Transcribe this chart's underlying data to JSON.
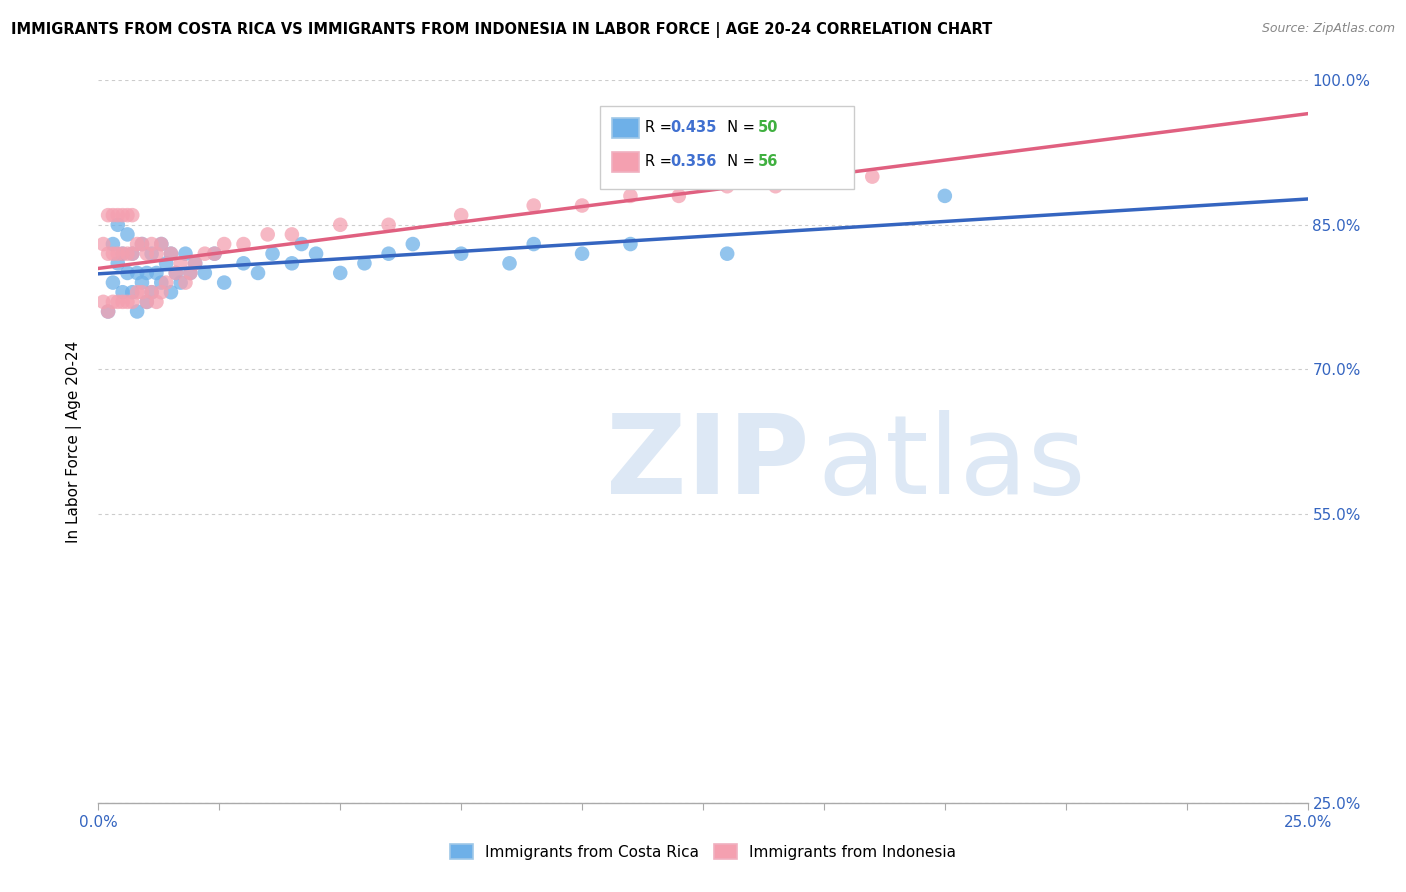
{
  "title": "IMMIGRANTS FROM COSTA RICA VS IMMIGRANTS FROM INDONESIA IN LABOR FORCE | AGE 20-24 CORRELATION CHART",
  "source": "Source: ZipAtlas.com",
  "ylabel": "In Labor Force | Age 20-24",
  "xlim": [
    0.0,
    0.25
  ],
  "ylim": [
    0.25,
    1.0
  ],
  "xticks": [
    0.0,
    0.025,
    0.05,
    0.075,
    0.1,
    0.125,
    0.15,
    0.175,
    0.2,
    0.225,
    0.25
  ],
  "yticks": [
    0.25,
    0.55,
    0.7,
    0.85,
    1.0
  ],
  "ytick_labels": [
    "25.0%",
    "55.0%",
    "70.0%",
    "85.0%",
    "100.0%"
  ],
  "xtick_labels": [
    "0.0%",
    "",
    "",
    "",
    "",
    "",
    "",
    "",
    "",
    "",
    "25.0%"
  ],
  "blue_R": 0.435,
  "blue_N": 50,
  "pink_R": 0.356,
  "pink_N": 56,
  "blue_color": "#6eb0e8",
  "pink_color": "#f4a0b0",
  "blue_line_color": "#3565c0",
  "pink_line_color": "#e06080",
  "legend_R_color": "#4070d0",
  "legend_N_color": "#40b040",
  "watermark_color": "#dde8f5",
  "background_color": "#ffffff",
  "grid_color": "#cccccc",
  "blue_x": [
    0.002,
    0.003,
    0.003,
    0.004,
    0.004,
    0.005,
    0.005,
    0.006,
    0.006,
    0.007,
    0.007,
    0.008,
    0.008,
    0.009,
    0.009,
    0.01,
    0.01,
    0.011,
    0.011,
    0.012,
    0.013,
    0.013,
    0.014,
    0.015,
    0.015,
    0.016,
    0.017,
    0.018,
    0.019,
    0.02,
    0.022,
    0.024,
    0.026,
    0.03,
    0.033,
    0.036,
    0.04,
    0.042,
    0.045,
    0.05,
    0.055,
    0.06,
    0.065,
    0.075,
    0.085,
    0.09,
    0.1,
    0.11,
    0.13,
    0.175
  ],
  "blue_y": [
    0.76,
    0.79,
    0.83,
    0.81,
    0.85,
    0.78,
    0.82,
    0.8,
    0.84,
    0.78,
    0.82,
    0.76,
    0.8,
    0.79,
    0.83,
    0.77,
    0.8,
    0.78,
    0.82,
    0.8,
    0.79,
    0.83,
    0.81,
    0.78,
    0.82,
    0.8,
    0.79,
    0.82,
    0.8,
    0.81,
    0.8,
    0.82,
    0.79,
    0.81,
    0.8,
    0.82,
    0.81,
    0.83,
    0.82,
    0.8,
    0.81,
    0.82,
    0.83,
    0.82,
    0.81,
    0.83,
    0.82,
    0.83,
    0.82,
    0.88
  ],
  "pink_x": [
    0.001,
    0.001,
    0.002,
    0.002,
    0.002,
    0.003,
    0.003,
    0.003,
    0.004,
    0.004,
    0.004,
    0.005,
    0.005,
    0.005,
    0.006,
    0.006,
    0.006,
    0.007,
    0.007,
    0.007,
    0.008,
    0.008,
    0.009,
    0.009,
    0.01,
    0.01,
    0.011,
    0.011,
    0.012,
    0.012,
    0.013,
    0.013,
    0.014,
    0.015,
    0.016,
    0.017,
    0.018,
    0.019,
    0.02,
    0.022,
    0.024,
    0.026,
    0.03,
    0.035,
    0.04,
    0.05,
    0.06,
    0.075,
    0.09,
    0.1,
    0.11,
    0.12,
    0.13,
    0.14,
    0.15,
    0.16
  ],
  "pink_y": [
    0.77,
    0.83,
    0.76,
    0.82,
    0.86,
    0.77,
    0.82,
    0.86,
    0.77,
    0.82,
    0.86,
    0.77,
    0.82,
    0.86,
    0.77,
    0.82,
    0.86,
    0.77,
    0.82,
    0.86,
    0.78,
    0.83,
    0.78,
    0.83,
    0.77,
    0.82,
    0.78,
    0.83,
    0.77,
    0.82,
    0.78,
    0.83,
    0.79,
    0.82,
    0.8,
    0.81,
    0.79,
    0.8,
    0.81,
    0.82,
    0.82,
    0.83,
    0.83,
    0.84,
    0.84,
    0.85,
    0.85,
    0.86,
    0.87,
    0.87,
    0.88,
    0.88,
    0.89,
    0.89,
    0.9,
    0.9
  ]
}
